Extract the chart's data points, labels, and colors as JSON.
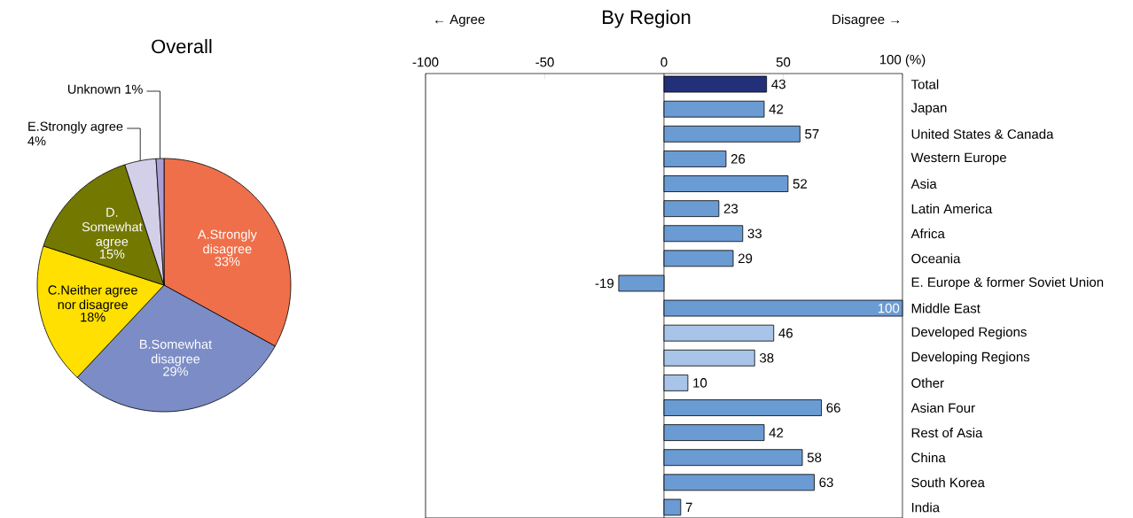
{
  "chart_data": [
    {
      "type": "pie",
      "title": "Overall",
      "categories": [
        "A.Strongly disagree",
        "B.Somewhat disagree",
        "C.Neither agree nor disagree",
        "D. Somewhat agree",
        "E.Strongly agree",
        "Unknown"
      ],
      "values": [
        33,
        29,
        18,
        15,
        4,
        1
      ],
      "value_labels": [
        "33%",
        "29%",
        "18%",
        "15%",
        "4%",
        "1%"
      ],
      "colors": [
        "#ef6f4a",
        "#7b8cc6",
        "#ffe000",
        "#737800",
        "#d4cfe8",
        "#a99fd6"
      ]
    },
    {
      "type": "bar",
      "orientation": "horizontal",
      "title": "By Region",
      "annotations": [
        "← Agree",
        "Disagree →"
      ],
      "categories": [
        "Total",
        "Japan",
        "United States & Canada",
        "Western Europe",
        "Asia",
        "Latin America",
        "Africa",
        "Oceania",
        "E. Europe & former Soviet Union",
        "Middle East",
        "Developed Regions",
        "Developing Regions",
        "Other",
        "Asian Four",
        "Rest of Asia",
        "China",
        "South Korea",
        "India"
      ],
      "values": [
        43,
        42,
        57,
        26,
        52,
        23,
        33,
        29,
        -19,
        100,
        46,
        38,
        10,
        66,
        42,
        58,
        63,
        7
      ],
      "colors": [
        "#22307a",
        "#6b9bd3",
        "#6b9bd3",
        "#6b9bd3",
        "#6b9bd3",
        "#6b9bd3",
        "#6b9bd3",
        "#6b9bd3",
        "#6b9bd3",
        "#6b9bd3",
        "#a8c4e8",
        "#a8c4e8",
        "#a8c4e8",
        "#6b9bd3",
        "#6b9bd3",
        "#6b9bd3",
        "#6b9bd3",
        "#6b9bd3"
      ],
      "xlim": [
        -100,
        100
      ],
      "xticks": [
        -100,
        -50,
        0,
        50,
        {
          "value": 100,
          "label": "100 (%)"
        }
      ],
      "ref_lines": [
        {
          "axis": "x",
          "value": 0
        }
      ],
      "data_labels": true
    }
  ]
}
